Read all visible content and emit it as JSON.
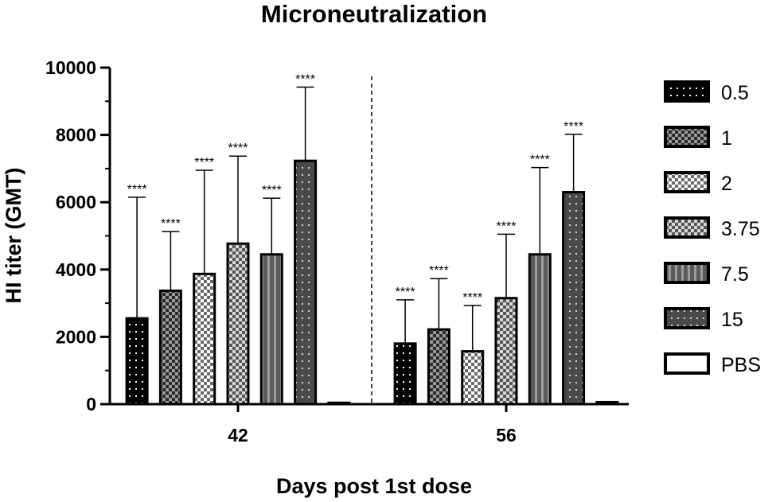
{
  "chart_data": {
    "type": "bar",
    "title": "Microneutralization",
    "xlabel": "Days post 1st dose",
    "ylabel": "HI titer   (GMT)",
    "ylim": [
      0,
      10000
    ],
    "yticks": [
      "0",
      "2000",
      "4000",
      "6000",
      "8000",
      "10000"
    ],
    "yticks_values": [
      0,
      2000,
      4000,
      6000,
      8000,
      10000
    ],
    "categories": [
      "42",
      "56"
    ],
    "legend_position": "right",
    "significance_marker": "****",
    "series": [
      {
        "name": "0.5",
        "values": [
          2550,
          1800
        ],
        "error": [
          6150,
          3100
        ],
        "pattern": "dots-on-black",
        "significant": [
          true,
          true
        ]
      },
      {
        "name": "1",
        "values": [
          3370,
          2220
        ],
        "error": [
          5130,
          3730
        ],
        "pattern": "checker-dark",
        "significant": [
          true,
          true
        ]
      },
      {
        "name": "2",
        "values": [
          3870,
          1570
        ],
        "error": [
          6950,
          2930
        ],
        "pattern": "checker-light",
        "significant": [
          true,
          true
        ]
      },
      {
        "name": "3.75",
        "values": [
          4770,
          3150
        ],
        "error": [
          7370,
          5050
        ],
        "pattern": "checker-medium",
        "significant": [
          true,
          true
        ]
      },
      {
        "name": "7.5",
        "values": [
          4450,
          4450
        ],
        "error": [
          6120,
          7030
        ],
        "pattern": "vertical-stripes",
        "significant": [
          true,
          true
        ]
      },
      {
        "name": "15",
        "values": [
          7230,
          6300
        ],
        "error": [
          9420,
          8020
        ],
        "pattern": "dots-on-dark-grey",
        "significant": [
          true,
          true
        ]
      },
      {
        "name": "PBS",
        "values": [
          40,
          60
        ],
        "error": [
          40,
          60
        ],
        "pattern": "white",
        "significant": [
          false,
          false
        ]
      }
    ],
    "group_divider": "dashed vertical line between groups"
  }
}
